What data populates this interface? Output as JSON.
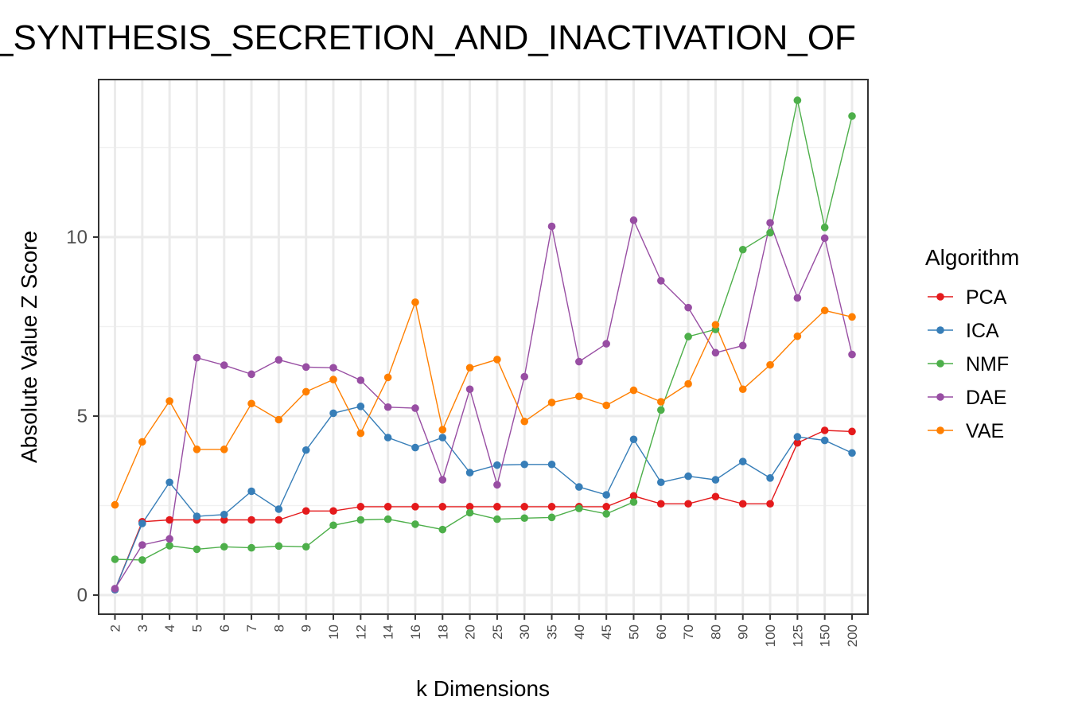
{
  "chart_data": {
    "type": "line",
    "title": "_SYNTHESIS_SECRETION_AND_INACTIVATION_OF",
    "xlabel": "k Dimensions",
    "ylabel": "Absolute Value Z Score",
    "categories": [
      "2",
      "3",
      "4",
      "5",
      "6",
      "7",
      "8",
      "9",
      "10",
      "12",
      "14",
      "16",
      "18",
      "20",
      "25",
      "30",
      "35",
      "40",
      "45",
      "50",
      "60",
      "70",
      "80",
      "90",
      "100",
      "125",
      "150",
      "200"
    ],
    "yticks": [
      0,
      5,
      10
    ],
    "ylim": [
      -0.5,
      14.5
    ],
    "grid": true,
    "legend": {
      "title": "Algorithm",
      "placement": "right"
    },
    "series": [
      {
        "name": "PCA",
        "color": "#e41a1c",
        "values": [
          0.15,
          2.05,
          2.1,
          2.1,
          2.1,
          2.1,
          2.1,
          2.35,
          2.35,
          2.47,
          2.47,
          2.47,
          2.47,
          2.47,
          2.47,
          2.47,
          2.47,
          2.47,
          2.47,
          2.77,
          2.55,
          2.55,
          2.75,
          2.55,
          2.55,
          4.25,
          4.6,
          4.57
        ]
      },
      {
        "name": "ICA",
        "color": "#377eb8",
        "values": [
          0.15,
          2.0,
          3.15,
          2.2,
          2.25,
          2.9,
          2.4,
          4.05,
          5.08,
          5.27,
          4.4,
          4.12,
          4.4,
          3.42,
          3.63,
          3.65,
          3.65,
          3.02,
          2.8,
          4.35,
          3.15,
          3.32,
          3.22,
          3.73,
          3.27,
          4.42,
          4.32,
          3.97
        ]
      },
      {
        "name": "NMF",
        "color": "#4daf4a",
        "values": [
          1.0,
          0.98,
          1.38,
          1.28,
          1.35,
          1.32,
          1.37,
          1.35,
          1.95,
          2.1,
          2.12,
          1.98,
          1.83,
          2.3,
          2.12,
          2.15,
          2.17,
          2.42,
          2.27,
          2.6,
          5.17,
          7.22,
          7.42,
          9.65,
          10.12,
          13.82,
          10.27,
          13.38
        ]
      },
      {
        "name": "DAE",
        "color": "#984ea3",
        "values": [
          0.18,
          1.4,
          1.57,
          6.63,
          6.42,
          6.17,
          6.57,
          6.37,
          6.35,
          6.0,
          5.25,
          5.22,
          3.22,
          5.75,
          3.08,
          6.1,
          10.3,
          6.52,
          7.02,
          10.47,
          8.78,
          8.03,
          6.77,
          6.97,
          10.4,
          8.3,
          9.97,
          6.72
        ]
      },
      {
        "name": "VAE",
        "color": "#ff7f00",
        "values": [
          2.52,
          4.28,
          5.42,
          4.07,
          4.07,
          5.35,
          4.9,
          5.68,
          6.02,
          4.52,
          6.08,
          8.18,
          4.62,
          6.35,
          6.58,
          4.85,
          5.38,
          5.55,
          5.3,
          5.72,
          5.4,
          5.9,
          7.55,
          5.75,
          6.43,
          7.23,
          7.95,
          7.77
        ]
      }
    ]
  }
}
